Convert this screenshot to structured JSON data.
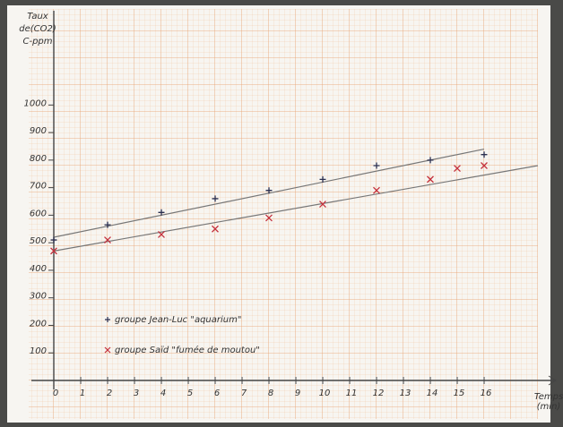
{
  "chart_data": {
    "type": "scatter",
    "ylabel": [
      "Taux",
      "de(CO2)",
      "C-ppm"
    ],
    "xlabel": [
      "Temps",
      "(min)"
    ],
    "xlim": [
      0,
      18
    ],
    "ylim": [
      0,
      1300
    ],
    "xticks": [
      0,
      1,
      2,
      3,
      4,
      5,
      6,
      7,
      8,
      9,
      10,
      11,
      12,
      13,
      14,
      15,
      16
    ],
    "yticks": [
      100,
      200,
      300,
      400,
      500,
      600,
      700,
      800,
      900,
      1000
    ],
    "legend": "lower left",
    "series": [
      {
        "name": "groupe Jean-Luc \"aquarium\"",
        "marker": "plus",
        "color": "#2b2f4f",
        "x": [
          0,
          2,
          4,
          6,
          8,
          10,
          12,
          14,
          16
        ],
        "values": [
          510,
          565,
          610,
          660,
          690,
          730,
          780,
          800,
          820
        ]
      },
      {
        "name": "groupe Saïd \"fumée de moutou\"",
        "marker": "cross",
        "color": "#c4303c",
        "x": [
          0,
          2,
          4,
          6,
          8,
          10,
          12,
          14,
          15,
          16
        ],
        "values": [
          470,
          510,
          530,
          550,
          590,
          640,
          690,
          730,
          770,
          780
        ]
      }
    ],
    "trendlines": [
      {
        "color": "#777777",
        "x": [
          0,
          16
        ],
        "values": [
          520,
          840
        ]
      },
      {
        "color": "#777777",
        "x": [
          0,
          18
        ],
        "values": [
          470,
          780
        ]
      }
    ]
  }
}
